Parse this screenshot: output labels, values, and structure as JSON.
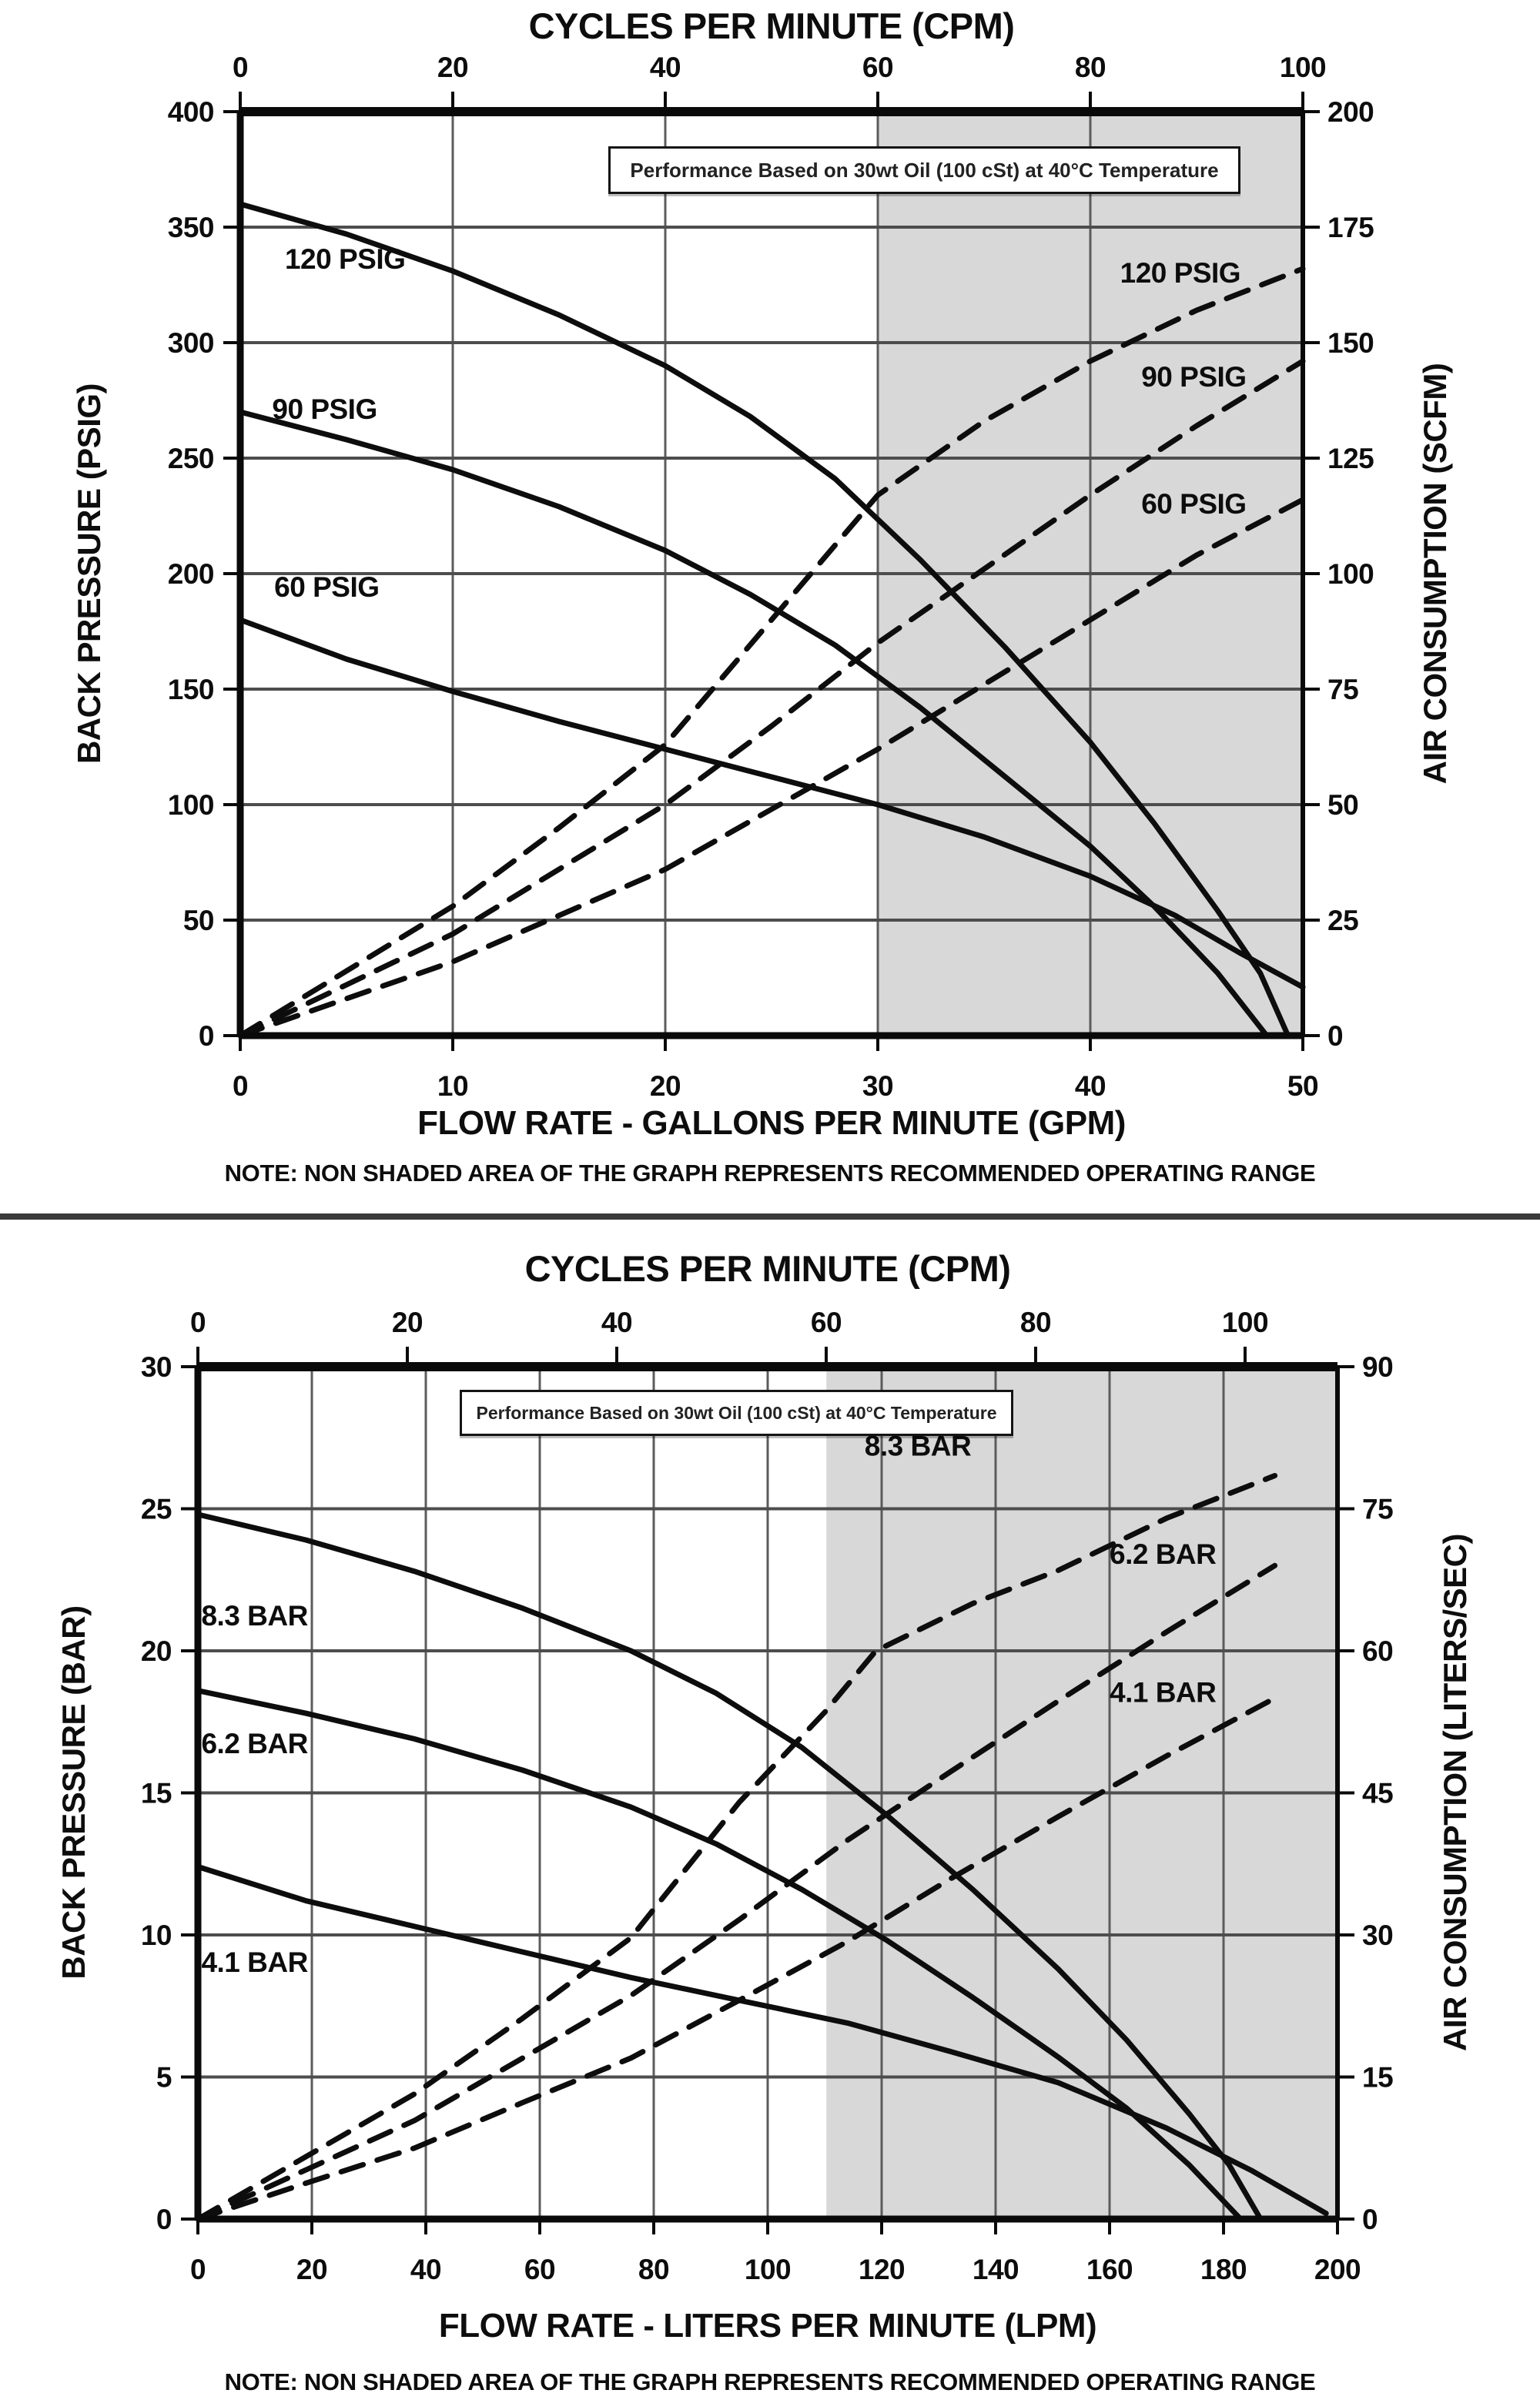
{
  "colors": {
    "background": "#ffffff",
    "shaded_region": "#d8d8d8",
    "grid_vertical": "#5c5c5c",
    "grid_horizontal": "#4d4d4d",
    "plot_border": "#0a0a0a",
    "curve": "#0d0d0d",
    "text": "#0d0d0d",
    "divider": "#3a3a3a"
  },
  "chart_data": [
    {
      "type": "line",
      "title": "CYCLES PER MINUTE (CPM)",
      "performance_note": "Performance Based on 30wt Oil (100 cSt) at 40°C Temperature",
      "note": "NOTE: NON SHADED AREA OF THE GRAPH REPRESENTS RECOMMENDED OPERATING RANGE",
      "x_axis": {
        "label": "FLOW RATE - GALLONS PER MINUTE (GPM)",
        "min": 0,
        "max": 50,
        "ticks": [
          0,
          10,
          20,
          30,
          40,
          50
        ]
      },
      "top_axis": {
        "label": "CYCLES PER MINUTE (CPM)",
        "min": 0,
        "max": 100,
        "ticks": [
          0,
          20,
          40,
          60,
          80,
          100
        ],
        "span_fraction": 1.0
      },
      "y_left": {
        "label": "BACK PRESSURE (PSIG)",
        "min": 0,
        "max": 400,
        "ticks": [
          400,
          350,
          300,
          250,
          200,
          150,
          100,
          50,
          0
        ]
      },
      "y_right": {
        "label": "AIR CONSUMPTION (SCFM)",
        "min": 0,
        "max": 200,
        "ticks": [
          200,
          175,
          150,
          125,
          100,
          75,
          50,
          25,
          0
        ]
      },
      "shaded_region": {
        "from_x": 30,
        "to_x": 50,
        "meaning": "outside recommended operating range"
      },
      "series": [
        {
          "id": "bp-120",
          "label": "120 PSIG",
          "style": "solid",
          "axis": "left",
          "points": [
            [
              0,
              360
            ],
            [
              5,
              347
            ],
            [
              10,
              331
            ],
            [
              15,
              312
            ],
            [
              20,
              290
            ],
            [
              24,
              268
            ],
            [
              28,
              241
            ],
            [
              32,
              206
            ],
            [
              36,
              168
            ],
            [
              40,
              127
            ],
            [
              43,
              92
            ],
            [
              46,
              54
            ],
            [
              48,
              27
            ],
            [
              49.3,
              0
            ]
          ]
        },
        {
          "id": "bp-90",
          "label": "90 PSIG",
          "style": "solid",
          "axis": "left",
          "points": [
            [
              0,
              270
            ],
            [
              5,
              258
            ],
            [
              10,
              245
            ],
            [
              15,
              229
            ],
            [
              20,
              210
            ],
            [
              24,
              191
            ],
            [
              28,
              169
            ],
            [
              32,
              142
            ],
            [
              36,
              112
            ],
            [
              40,
              82
            ],
            [
              43,
              56
            ],
            [
              46,
              27
            ],
            [
              48.3,
              0
            ]
          ]
        },
        {
          "id": "bp-60",
          "label": "60 PSIG",
          "style": "solid",
          "axis": "left",
          "points": [
            [
              0,
              180
            ],
            [
              5,
              163
            ],
            [
              10,
              149
            ],
            [
              15,
              136
            ],
            [
              20,
              124
            ],
            [
              25,
              112
            ],
            [
              30,
              100
            ],
            [
              35,
              86
            ],
            [
              40,
              69
            ],
            [
              44,
              52
            ],
            [
              47,
              36
            ],
            [
              50,
              21
            ]
          ]
        },
        {
          "id": "air-120",
          "label": "120 PSIG",
          "style": "dashed",
          "axis": "right",
          "points": [
            [
              0,
              0
            ],
            [
              5,
              14
            ],
            [
              10,
              28
            ],
            [
              15,
              45
            ],
            [
              20,
              63
            ],
            [
              25,
              90
            ],
            [
              30,
              117
            ],
            [
              35,
              133
            ],
            [
              40,
              146
            ],
            [
              45,
              157
            ],
            [
              50,
              166
            ]
          ]
        },
        {
          "id": "air-90",
          "label": "90 PSIG",
          "style": "dashed",
          "axis": "right",
          "points": [
            [
              0,
              0
            ],
            [
              5,
              11
            ],
            [
              10,
              22
            ],
            [
              15,
              36
            ],
            [
              20,
              50
            ],
            [
              25,
              67
            ],
            [
              30,
              85
            ],
            [
              35,
              101
            ],
            [
              40,
              117
            ],
            [
              45,
              132
            ],
            [
              50,
              146
            ]
          ]
        },
        {
          "id": "air-60",
          "label": "60 PSIG",
          "style": "dashed",
          "axis": "right",
          "points": [
            [
              0,
              0
            ],
            [
              5,
              8
            ],
            [
              10,
              16
            ],
            [
              15,
              26
            ],
            [
              20,
              36
            ],
            [
              25,
              49
            ],
            [
              30,
              62
            ],
            [
              35,
              76
            ],
            [
              40,
              90
            ],
            [
              45,
              104
            ],
            [
              50,
              116
            ]
          ]
        }
      ],
      "series_labels": [
        {
          "for": "bp-120",
          "text": "120 PSIG",
          "x": 2.1,
          "y": 332,
          "axis": "left"
        },
        {
          "for": "bp-90",
          "text": "90 PSIG",
          "x": 1.5,
          "y": 267,
          "axis": "left"
        },
        {
          "for": "bp-60",
          "text": "60 PSIG",
          "x": 1.6,
          "y": 190,
          "axis": "left"
        },
        {
          "for": "air-120",
          "text": "120 PSIG",
          "x": 41.4,
          "y": 163,
          "axis": "right"
        },
        {
          "for": "air-90",
          "text": "90 PSIG",
          "x": 42.4,
          "y": 140.5,
          "axis": "right"
        },
        {
          "for": "air-60",
          "text": "60 PSIG",
          "x": 42.4,
          "y": 113,
          "axis": "right"
        }
      ]
    },
    {
      "type": "line",
      "title": "CYCLES PER MINUTE (CPM)",
      "performance_note": "Performance Based on 30wt Oil (100 cSt) at 40°C Temperature",
      "note": "NOTE: NON SHADED AREA OF THE GRAPH REPRESENTS RECOMMENDED OPERATING RANGE",
      "x_axis": {
        "label": "FLOW RATE - LITERS PER MINUTE (LPM)",
        "min": 0,
        "max": 200,
        "ticks": [
          0,
          20,
          40,
          60,
          80,
          100,
          120,
          140,
          160,
          180,
          200
        ]
      },
      "top_axis": {
        "label": "CYCLES PER MINUTE (CPM)",
        "min": 0,
        "max": 100,
        "ticks": [
          0,
          20,
          40,
          60,
          80,
          100
        ],
        "span_fraction": 0.9189
      },
      "y_left": {
        "label": "BACK PRESSURE (BAR)",
        "min": 0,
        "max": 30,
        "ticks": [
          30,
          25,
          20,
          15,
          10,
          5,
          0
        ]
      },
      "y_right": {
        "label": "AIR CONSUMPTION (LITERS/SEC)",
        "min": 0,
        "max": 90,
        "ticks": [
          90,
          75,
          60,
          45,
          30,
          15,
          0
        ]
      },
      "shaded_region": {
        "from_x": 110.3,
        "to_x": 200,
        "meaning": "outside recommended operating range"
      },
      "series": [
        {
          "id": "bp-83",
          "label": "8.3 BAR",
          "style": "solid",
          "axis": "left",
          "points": [
            [
              0,
              24.8
            ],
            [
              19,
              23.9
            ],
            [
              38,
              22.8
            ],
            [
              57,
              21.5
            ],
            [
              76,
              20
            ],
            [
              91,
              18.5
            ],
            [
              106,
              16.6
            ],
            [
              121,
              14.2
            ],
            [
              136,
              11.6
            ],
            [
              151,
              8.8
            ],
            [
              163,
              6.3
            ],
            [
              174,
              3.7
            ],
            [
              181,
              1.9
            ],
            [
              186.5,
              0
            ]
          ]
        },
        {
          "id": "bp-62",
          "label": "6.2 BAR",
          "style": "solid",
          "axis": "left",
          "points": [
            [
              0,
              18.6
            ],
            [
              19,
              17.8
            ],
            [
              38,
              16.9
            ],
            [
              57,
              15.8
            ],
            [
              76,
              14.5
            ],
            [
              91,
              13.2
            ],
            [
              106,
              11.6
            ],
            [
              121,
              9.8
            ],
            [
              136,
              7.8
            ],
            [
              151,
              5.7
            ],
            [
              163,
              3.9
            ],
            [
              174,
              1.9
            ],
            [
              183,
              0
            ]
          ]
        },
        {
          "id": "bp-41",
          "label": "4.1 BAR",
          "style": "solid",
          "axis": "left",
          "points": [
            [
              0,
              12.4
            ],
            [
              19,
              11.2
            ],
            [
              38,
              10.3
            ],
            [
              57,
              9.4
            ],
            [
              76,
              8.5
            ],
            [
              95,
              7.7
            ],
            [
              114,
              6.9
            ],
            [
              132,
              5.9
            ],
            [
              151,
              4.8
            ],
            [
              170,
              3.2
            ],
            [
              185,
              1.7
            ],
            [
              198,
              0.2
            ]
          ]
        },
        {
          "id": "air-83",
          "label": "8.3 BAR",
          "style": "dashed",
          "axis": "right",
          "points": [
            [
              0,
              0
            ],
            [
              19,
              6.6
            ],
            [
              38,
              13.2
            ],
            [
              57,
              21.2
            ],
            [
              76,
              29.7
            ],
            [
              95,
              44
            ],
            [
              110,
              53.5
            ],
            [
              119,
              60
            ],
            [
              136,
              65
            ],
            [
              151,
              68.5
            ],
            [
              170,
              74
            ],
            [
              189,
              78.5
            ]
          ]
        },
        {
          "id": "air-62",
          "label": "6.2 BAR",
          "style": "dashed",
          "axis": "right",
          "points": [
            [
              0,
              0
            ],
            [
              19,
              5.2
            ],
            [
              38,
              10.4
            ],
            [
              57,
              17
            ],
            [
              76,
              23.6
            ],
            [
              95,
              31.6
            ],
            [
              114,
              40
            ],
            [
              132,
              47.2
            ],
            [
              151,
              54.7
            ],
            [
              170,
              62
            ],
            [
              189,
              69
            ]
          ]
        },
        {
          "id": "air-41",
          "label": "4.1 BAR",
          "style": "dashed",
          "axis": "right",
          "points": [
            [
              0,
              0
            ],
            [
              19,
              3.8
            ],
            [
              38,
              7.5
            ],
            [
              57,
              12.3
            ],
            [
              76,
              17
            ],
            [
              95,
              23.1
            ],
            [
              114,
              29.3
            ],
            [
              132,
              35.9
            ],
            [
              151,
              42.5
            ],
            [
              170,
              48.9
            ],
            [
              189,
              55
            ]
          ]
        }
      ],
      "series_labels": [
        {
          "for": "bp-83",
          "text": "8.3 BAR",
          "x": 0.6,
          "y": 20.9,
          "axis": "left"
        },
        {
          "for": "bp-62",
          "text": "6.2 BAR",
          "x": 0.6,
          "y": 16.4,
          "axis": "left"
        },
        {
          "for": "bp-41",
          "text": "4.1 BAR",
          "x": 0.6,
          "y": 8.7,
          "axis": "left"
        },
        {
          "for": "air-83",
          "text": "8.3 BAR",
          "x": 117,
          "y": 80.6,
          "axis": "right"
        },
        {
          "for": "air-62",
          "text": "6.2 BAR",
          "x": 160,
          "y": 69.2,
          "axis": "right"
        },
        {
          "for": "air-41",
          "text": "4.1 BAR",
          "x": 160,
          "y": 54.6,
          "axis": "right"
        }
      ]
    }
  ]
}
